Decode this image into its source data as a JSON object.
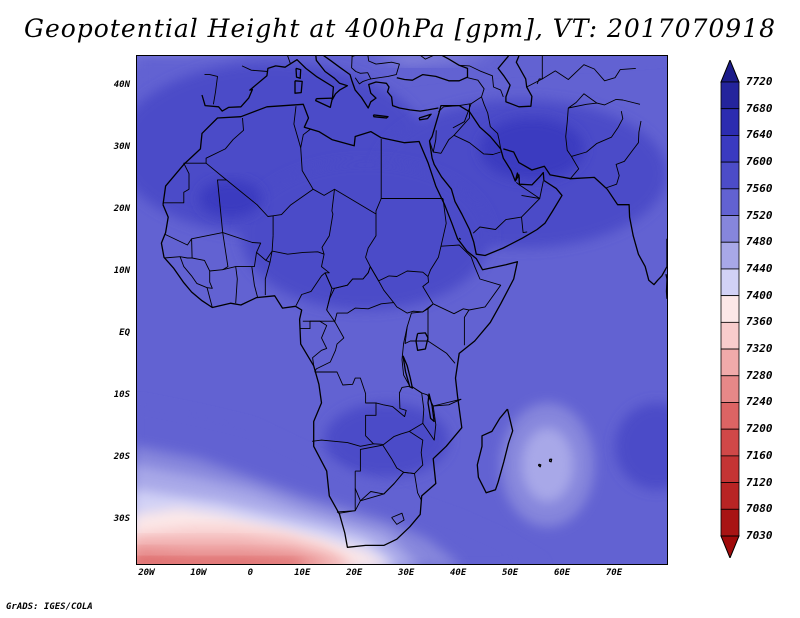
{
  "title": "Geopotential Height at 400hPa [gpm], VT: 2017070918",
  "credit": "GrADS: IGES/COLA",
  "map": {
    "lon_range": [
      -22,
      80
    ],
    "lat_range": [
      -37,
      45
    ],
    "lat_labels": [
      {
        "value": 40,
        "label": "40N"
      },
      {
        "value": 30,
        "label": "30N"
      },
      {
        "value": 20,
        "label": "20N"
      },
      {
        "value": 10,
        "label": "10N"
      },
      {
        "value": 0,
        "label": "EQ"
      },
      {
        "value": -10,
        "label": "10S"
      },
      {
        "value": -20,
        "label": "20S"
      },
      {
        "value": -30,
        "label": "30S"
      }
    ],
    "lon_labels": [
      {
        "value": -20,
        "label": "20W"
      },
      {
        "value": -10,
        "label": "10W"
      },
      {
        "value": 0,
        "label": "0"
      },
      {
        "value": 10,
        "label": "10E"
      },
      {
        "value": 20,
        "label": "20E"
      },
      {
        "value": 30,
        "label": "30E"
      },
      {
        "value": 40,
        "label": "40E"
      },
      {
        "value": 50,
        "label": "50E"
      },
      {
        "value": 60,
        "label": "60E"
      },
      {
        "value": 70,
        "label": "70E"
      }
    ],
    "field_regions": [
      {
        "level": 7560,
        "lon": 4,
        "lat": 30,
        "rlon": 30,
        "rlat": 14
      },
      {
        "level": 7560,
        "lon": 52,
        "lat": 26,
        "rlon": 28,
        "rlat": 12
      },
      {
        "level": 7560,
        "lon": 22,
        "lat": 16,
        "rlon": 24,
        "rlat": 12
      },
      {
        "level": 7560,
        "lon": 26,
        "lat": -17,
        "rlon": 12,
        "rlat": 6
      },
      {
        "level": 7560,
        "lon": 78,
        "lat": -18,
        "rlon": 8,
        "rlat": 7
      },
      {
        "level": 7600,
        "lon": -4,
        "lat": 22,
        "rlon": 6,
        "rlat": 3
      },
      {
        "level": 7600,
        "lon": 54,
        "lat": 30,
        "rlon": 10,
        "rlat": 5
      },
      {
        "level": 7480,
        "lon": 57,
        "lat": -21,
        "rlon": 9,
        "rlat": 10
      },
      {
        "level": 7440,
        "lon": 57,
        "lat": -21,
        "rlon": 5,
        "rlat": 6
      }
    ],
    "southern_bands": [
      {
        "level": 7520,
        "points": [
          [
            -22,
            -11
          ],
          [
            -10,
            -13
          ],
          [
            0,
            -15
          ],
          [
            10,
            -19
          ],
          [
            20,
            -23
          ],
          [
            30,
            -27
          ],
          [
            40,
            -30
          ],
          [
            48,
            -33
          ],
          [
            56,
            -37
          ]
        ]
      },
      {
        "level": 7480,
        "points": [
          [
            -22,
            -18
          ],
          [
            -10,
            -20
          ],
          [
            0,
            -23
          ],
          [
            10,
            -26
          ],
          [
            18,
            -28
          ],
          [
            26,
            -30
          ],
          [
            34,
            -33
          ],
          [
            40,
            -37
          ]
        ]
      },
      {
        "level": 7440,
        "points": [
          [
            -22,
            -21
          ],
          [
            -10,
            -23
          ],
          [
            0,
            -25
          ],
          [
            10,
            -28
          ],
          [
            18,
            -30
          ],
          [
            26,
            -32
          ],
          [
            32,
            -37
          ]
        ]
      },
      {
        "level": 7400,
        "points": [
          [
            -22,
            -25
          ],
          [
            -14,
            -26
          ],
          [
            -6,
            -27
          ],
          [
            4,
            -29
          ],
          [
            14,
            -31
          ],
          [
            22,
            -33
          ],
          [
            28,
            -37
          ]
        ]
      },
      {
        "level": 7360,
        "points": [
          [
            -22,
            -29
          ],
          [
            -14,
            -28
          ],
          [
            -6,
            -29
          ],
          [
            4,
            -31
          ],
          [
            14,
            -33
          ],
          [
            22,
            -35
          ],
          [
            26,
            -37
          ]
        ]
      },
      {
        "level": 7320,
        "points": [
          [
            -22,
            -32
          ],
          [
            -12,
            -31
          ],
          [
            -4,
            -31
          ],
          [
            6,
            -32
          ],
          [
            14,
            -34
          ],
          [
            20,
            -37
          ]
        ]
      },
      {
        "level": 7280,
        "points": [
          [
            -22,
            -33
          ],
          [
            -12,
            -33
          ],
          [
            -2,
            -33
          ],
          [
            8,
            -34
          ],
          [
            16,
            -36
          ],
          [
            18,
            -37
          ]
        ]
      },
      {
        "level": 7240,
        "points": [
          [
            -22,
            -34.5
          ],
          [
            -12,
            -35
          ],
          [
            -2,
            -35
          ],
          [
            8,
            -35.5
          ],
          [
            14,
            -37
          ]
        ]
      },
      {
        "level": 7200,
        "points": [
          [
            -22,
            -36
          ],
          [
            -12,
            -36.3
          ],
          [
            -2,
            -36.3
          ],
          [
            8,
            -36.6
          ],
          [
            10,
            -37
          ]
        ]
      }
    ],
    "northern_bands": [
      {
        "level": 7480,
        "points": [
          [
            -22,
            44
          ],
          [
            -14,
            43
          ],
          [
            -6,
            43.5
          ],
          [
            0,
            45
          ]
        ]
      },
      {
        "level": 7440,
        "points": [
          [
            -22,
            45
          ],
          [
            -16,
            44.5
          ],
          [
            -10,
            45
          ]
        ]
      },
      {
        "level": 7520,
        "points": [
          [
            -22,
            40
          ],
          [
            -12,
            38
          ],
          [
            0,
            37
          ],
          [
            10,
            38
          ],
          [
            20,
            40
          ],
          [
            30,
            42
          ],
          [
            40,
            43
          ],
          [
            50,
            43.5
          ],
          [
            60,
            44
          ],
          [
            70,
            44.5
          ],
          [
            80,
            45
          ]
        ]
      },
      {
        "level": 7480,
        "points": [
          [
            24,
            45
          ],
          [
            30,
            43.5
          ],
          [
            38,
            44
          ],
          [
            46,
            45
          ]
        ]
      }
    ]
  },
  "colorbar": {
    "levels": [
      7720,
      7680,
      7640,
      7600,
      7560,
      7520,
      7480,
      7440,
      7400,
      7360,
      7320,
      7280,
      7240,
      7200,
      7160,
      7120,
      7080,
      7030
    ],
    "colors": [
      "#1c1c8a",
      "#24249c",
      "#2c2cb0",
      "#3a3ac0",
      "#4c4cc8",
      "#6262d2",
      "#8686dc",
      "#a8a8e8",
      "#d2d2f6",
      "#fce8e8",
      "#f8cccc",
      "#f0aaaa",
      "#e68888",
      "#dc6464",
      "#d04848",
      "#c43434",
      "#b82424",
      "#a81414",
      "#a00a0a"
    ]
  }
}
